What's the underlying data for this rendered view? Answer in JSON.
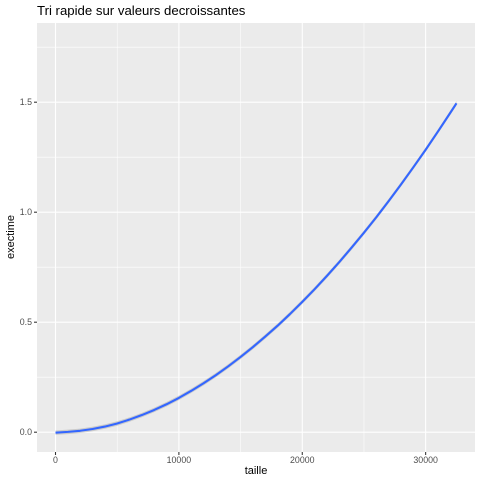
{
  "chart_data": {
    "type": "line",
    "title": "Tri rapide sur valeurs decroissantes",
    "xlabel": "taille",
    "ylabel": "exectime",
    "xlim": [
      -1500,
      34000
    ],
    "ylim": [
      -0.09,
      1.86
    ],
    "x_ticks": [
      0,
      10000,
      20000,
      30000
    ],
    "x_tick_labels": [
      "0",
      "10000",
      "20000",
      "30000"
    ],
    "x_minor_ticks": [
      5000,
      15000,
      25000
    ],
    "y_ticks": [
      0,
      0.5,
      1,
      1.5
    ],
    "y_tick_labels": [
      "0.0",
      "0.5",
      "1.0",
      "1.5"
    ],
    "y_minor_ticks": [
      0.25,
      0.75,
      1.25,
      1.75
    ],
    "grid": true,
    "legend": "none",
    "series": [
      {
        "x": [
          0,
          1000,
          2000,
          3000,
          4000,
          5000,
          6000,
          7000,
          8000,
          9000,
          10000,
          11000,
          12000,
          13000,
          14000,
          15000,
          16000,
          17000,
          18000,
          19000,
          20000,
          21000,
          22000,
          23000,
          24000,
          25000,
          26000,
          27000,
          28000,
          29000,
          30000,
          31000,
          32000,
          32500
        ],
        "y": [
          -0.002,
          0.0015,
          0.0065,
          0.0145,
          0.0255,
          0.0395,
          0.0575,
          0.078,
          0.101,
          0.127,
          0.156,
          0.188,
          0.2225,
          0.2595,
          0.2995,
          0.342,
          0.387,
          0.4345,
          0.484,
          0.537,
          0.5925,
          0.65,
          0.7105,
          0.7735,
          0.839,
          0.907,
          0.977,
          1.0505,
          1.126,
          1.204,
          1.284,
          1.367,
          1.452,
          1.495
        ],
        "color": "#3366ff",
        "band": 0.01
      }
    ]
  }
}
